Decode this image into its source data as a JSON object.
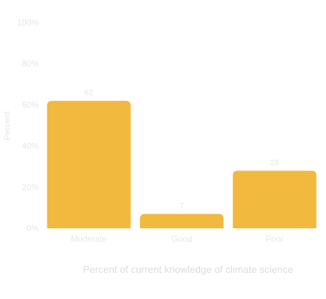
{
  "chart_data": {
    "type": "bar",
    "title": "",
    "categories": [
      "Moderate",
      "Good",
      "Poor"
    ],
    "values": [
      62,
      7,
      28
    ],
    "value_labels": [
      "62",
      "7",
      "28"
    ],
    "ylabel": "Percent",
    "xlabel": "Percent of current knowledge of climate science",
    "ylim": [
      0,
      100
    ],
    "yticks": [
      0,
      20,
      40,
      60,
      80,
      100
    ],
    "ytick_labels": [
      "0%",
      "20%",
      "40%",
      "60%",
      "80%",
      "100%"
    ],
    "grid": false,
    "legend": "none",
    "bar_color": "#F2B93F"
  }
}
